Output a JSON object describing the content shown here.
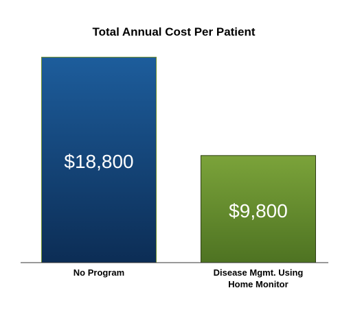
{
  "chart_data": {
    "type": "bar",
    "title": "Total Annual Cost Per Patient",
    "categories": [
      [
        "No Program"
      ],
      [
        "Disease Mgmt. Using",
        "Home Monitor"
      ]
    ],
    "values": [
      18800,
      9800
    ],
    "value_labels": [
      "$18,800",
      "$9,800"
    ],
    "bar_colors": [
      {
        "top": "#1d5d9c",
        "bottom": "#0c2d55",
        "border": "#6f8d2a"
      },
      {
        "top": "#7ba33a",
        "bottom": "#4e7322",
        "border": "#2e3d14"
      }
    ],
    "xlabel": "",
    "ylabel": "",
    "ylim": [
      0,
      19200
    ],
    "grid": false,
    "legend": "none"
  }
}
